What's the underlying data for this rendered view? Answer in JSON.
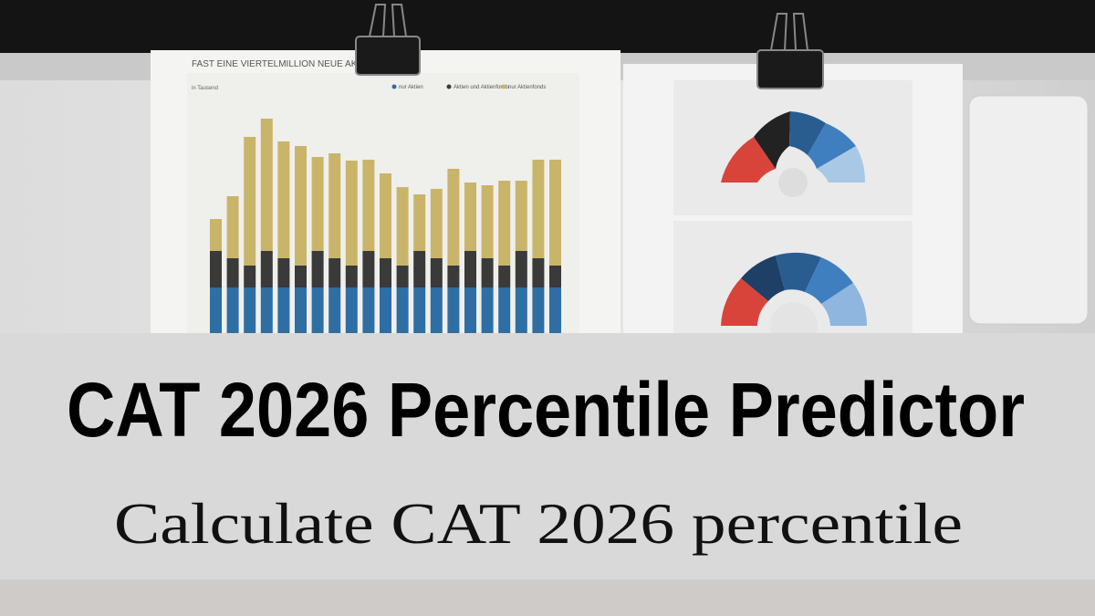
{
  "photo": {
    "chart_title": "FAST EINE VIERTELMILLION NEUE AKTIEN",
    "unit_note": "in Tausend",
    "legend": [
      "nur Aktien",
      "Aktien und Aktienfonds",
      "nur Aktienfonds"
    ]
  },
  "banner": {
    "title": "CAT 2026 Percentile Predictor",
    "subtitle": "Calculate CAT 2026 percentile"
  }
}
